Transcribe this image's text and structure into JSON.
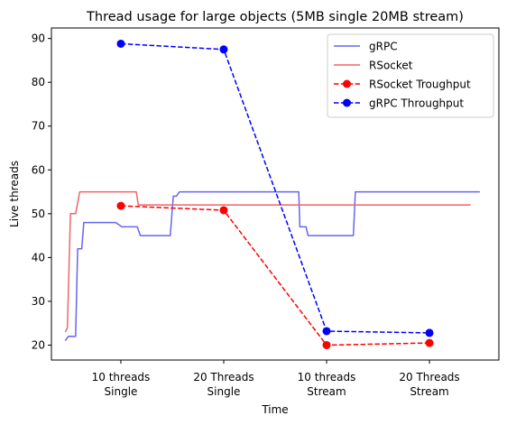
{
  "chart_data": {
    "type": "line",
    "title": "Thread usage for large objects (5MB single 20MB stream)",
    "xlabel": "Time",
    "ylabel": "Live threads",
    "ylim": [
      16.6,
      92.4
    ],
    "yticks": [
      20,
      30,
      40,
      50,
      60,
      70,
      80,
      90
    ],
    "grid": false,
    "legend_position": "top-right",
    "categories": [
      {
        "line1": "10 threads",
        "line2": "Single",
        "x": 1
      },
      {
        "line1": "20 Threads",
        "line2": "Single",
        "x": 2
      },
      {
        "line1": "10 threads",
        "line2": "Stream",
        "x": 3
      },
      {
        "line1": "20 Threads",
        "line2": "Stream",
        "x": 4
      }
    ],
    "series": [
      {
        "name": "gRPC",
        "color": "#6666ee",
        "style": "solid",
        "marker": "none",
        "x": [
          0.46,
          0.49,
          0.52,
          0.56,
          0.58,
          0.59,
          0.62,
          0.64,
          0.66,
          0.82,
          0.95,
          1.01,
          1.07,
          1.15,
          1.16,
          1.19,
          1.28,
          1.32,
          1.48,
          1.51,
          1.54,
          1.57,
          1.59,
          1.63,
          1.65,
          2.15,
          2.5,
          2.73,
          2.74,
          2.8,
          2.82,
          2.86,
          3.15,
          3.26,
          3.28,
          3.3,
          4.0,
          4.49
        ],
        "y": [
          21,
          22,
          22,
          22,
          42,
          42,
          42,
          48,
          48,
          48,
          48,
          47,
          47,
          47,
          47,
          45,
          45,
          45,
          45,
          54,
          54,
          55,
          55,
          55,
          55,
          55,
          55,
          55,
          47,
          47,
          45,
          45,
          45,
          45,
          55,
          55,
          55,
          55
        ]
      },
      {
        "name": "RSocket",
        "color": "#ee6666",
        "style": "solid",
        "marker": "none",
        "x": [
          0.46,
          0.48,
          0.51,
          0.56,
          0.6,
          0.66,
          0.76,
          1.03,
          1.15,
          1.17,
          1.35,
          2.0,
          3.0,
          3.8,
          4.4
        ],
        "y": [
          23,
          24,
          50,
          50,
          55,
          55,
          55,
          55,
          55,
          52,
          52,
          52,
          52,
          52,
          52
        ]
      },
      {
        "name": "RSocket Troughput",
        "color": "#ff0000",
        "style": "dashed",
        "marker": "o",
        "x": [
          1,
          2,
          3,
          4
        ],
        "y": [
          51.8,
          50.8,
          20.0,
          20.5
        ]
      },
      {
        "name": "gRPC Throughput",
        "color": "#0000ff",
        "style": "dashed",
        "marker": "o",
        "x": [
          1,
          2,
          3,
          4
        ],
        "y": [
          88.8,
          87.5,
          23.2,
          22.8
        ]
      }
    ]
  }
}
